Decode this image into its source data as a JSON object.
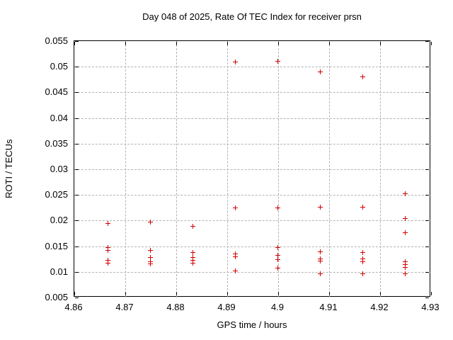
{
  "chart_data": {
    "type": "scatter",
    "title": "Day 048 of 2025, Rate Of TEC Index for receiver prsn",
    "xlabel": "GPS time / hours",
    "ylabel": "ROTI / TECUs",
    "xlim": [
      4.86,
      4.93
    ],
    "ylim": [
      0.005,
      0.055
    ],
    "xticks": [
      4.86,
      4.87,
      4.88,
      4.89,
      4.9,
      4.91,
      4.92,
      4.93
    ],
    "xtick_labels": [
      "4.86",
      "4.87",
      "4.88",
      "4.89",
      "4.9",
      "4.91",
      "4.92",
      "4.93"
    ],
    "yticks": [
      0.005,
      0.01,
      0.015,
      0.02,
      0.025,
      0.03,
      0.035,
      0.04,
      0.045,
      0.05,
      0.055
    ],
    "ytick_labels": [
      "0.005",
      "0.01",
      "0.015",
      "0.02",
      "0.025",
      "0.03",
      "0.035",
      "0.04",
      "0.045",
      "0.05",
      "0.055"
    ],
    "grid": true,
    "legend_position": "none",
    "marker_symbol": "plus",
    "marker_color": "#d40000",
    "series": [
      {
        "name": "ROTI",
        "points": [
          [
            4.8667,
            0.0194
          ],
          [
            4.8667,
            0.0147
          ],
          [
            4.8667,
            0.0141
          ],
          [
            4.8667,
            0.0122
          ],
          [
            4.8667,
            0.0116
          ],
          [
            4.875,
            0.0196
          ],
          [
            4.875,
            0.0141
          ],
          [
            4.875,
            0.0128
          ],
          [
            4.875,
            0.0119
          ],
          [
            4.875,
            0.0115
          ],
          [
            4.8833,
            0.0188
          ],
          [
            4.8833,
            0.0137
          ],
          [
            4.8833,
            0.0127
          ],
          [
            4.8833,
            0.0122
          ],
          [
            4.8833,
            0.0116
          ],
          [
            4.8917,
            0.0509
          ],
          [
            4.8917,
            0.0224
          ],
          [
            4.8917,
            0.0134
          ],
          [
            4.8917,
            0.0129
          ],
          [
            4.8917,
            0.0101
          ],
          [
            4.9,
            0.051
          ],
          [
            4.9,
            0.0224
          ],
          [
            4.9,
            0.0146
          ],
          [
            4.9,
            0.0131
          ],
          [
            4.9,
            0.0123
          ],
          [
            4.9,
            0.0106
          ],
          [
            4.9083,
            0.0489
          ],
          [
            4.9083,
            0.0226
          ],
          [
            4.9083,
            0.0138
          ],
          [
            4.9083,
            0.0124
          ],
          [
            4.9083,
            0.012
          ],
          [
            4.9083,
            0.0095
          ],
          [
            4.9167,
            0.0479
          ],
          [
            4.9167,
            0.0226
          ],
          [
            4.9167,
            0.0137
          ],
          [
            4.9167,
            0.0124
          ],
          [
            4.9167,
            0.0119
          ],
          [
            4.9167,
            0.0095
          ],
          [
            4.925,
            0.0251
          ],
          [
            4.925,
            0.0204
          ],
          [
            4.925,
            0.0176
          ],
          [
            4.925,
            0.0119
          ],
          [
            4.925,
            0.0113
          ],
          [
            4.925,
            0.0108
          ],
          [
            4.925,
            0.0095
          ]
        ]
      }
    ]
  }
}
